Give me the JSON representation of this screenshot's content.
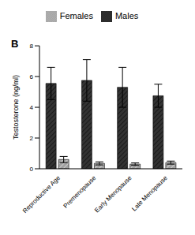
{
  "chart_data": {
    "type": "bar",
    "title": "B",
    "y_label": "Testosterone (ng/ml)",
    "categories": [
      "Reproductive Age",
      "Premenopause",
      "Early Menopause",
      "Late Menopause"
    ],
    "series": [
      {
        "name": "Males",
        "color": "#333333",
        "values": [
          5.55,
          5.75,
          5.3,
          4.75
        ],
        "errors": [
          1.05,
          1.35,
          1.3,
          0.75
        ]
      },
      {
        "name": "Females",
        "color": "#a0a0a0",
        "values": [
          0.6,
          0.35,
          0.3,
          0.4
        ],
        "errors": [
          0.2,
          0.1,
          0.08,
          0.1
        ]
      }
    ],
    "ylim": [
      0,
      8
    ],
    "yticks": [
      0,
      2,
      4,
      6,
      8
    ],
    "legend": "top",
    "grid": false
  }
}
